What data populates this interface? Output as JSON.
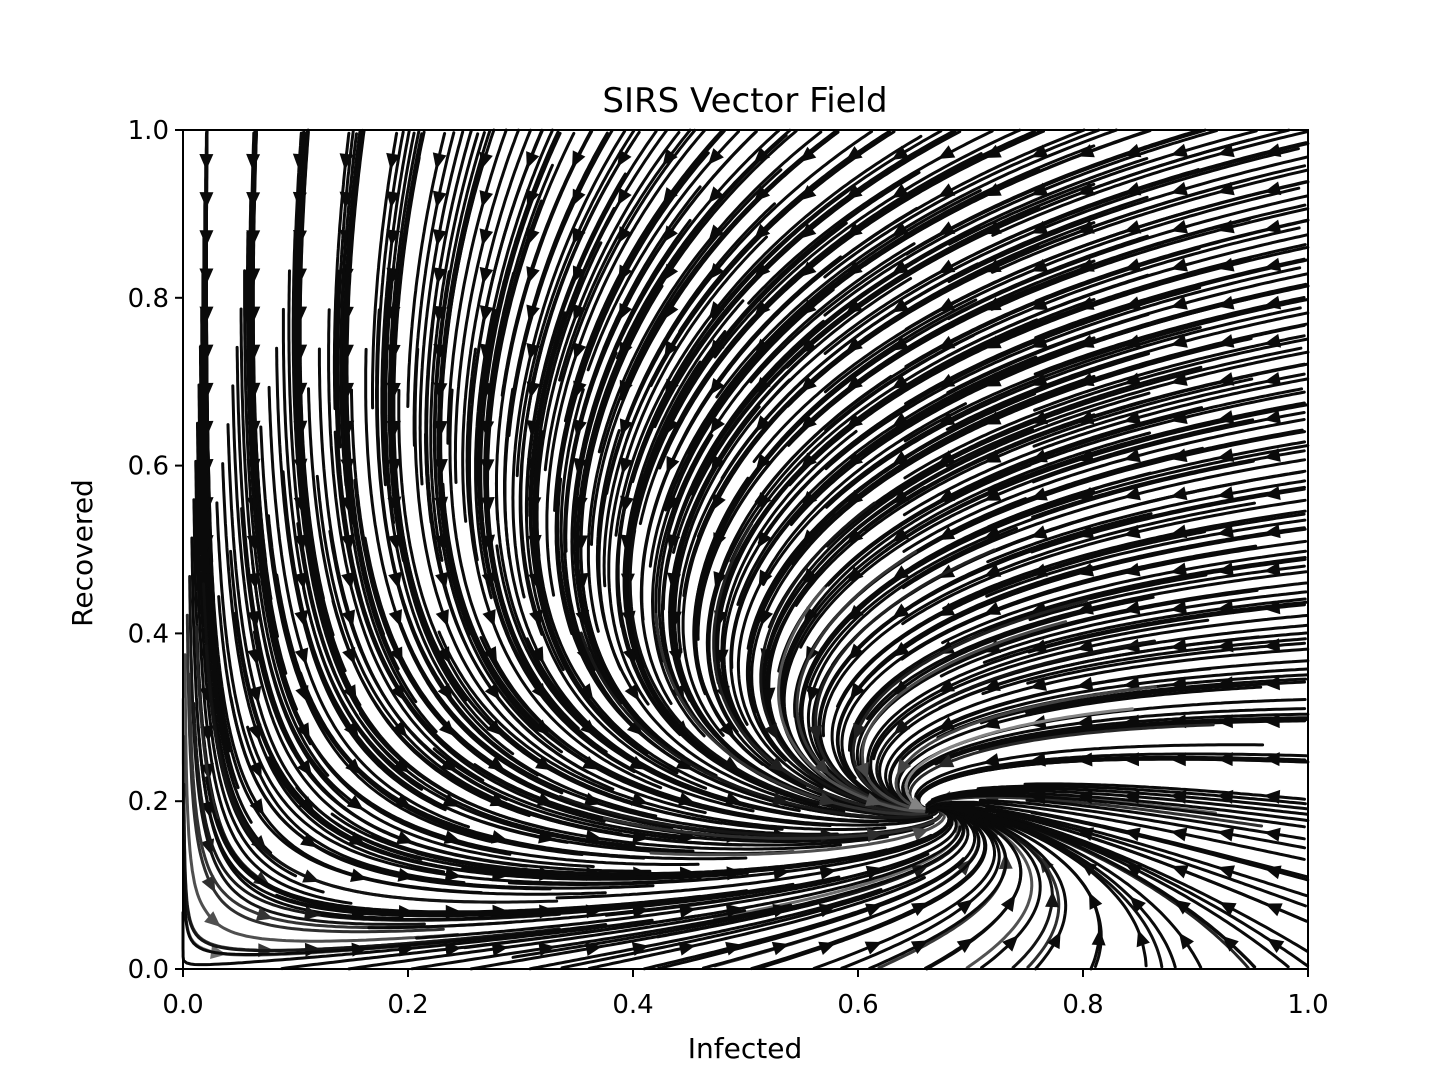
{
  "chart_data": {
    "type": "streamplot",
    "title": "SIRS Vector Field",
    "xlabel": "Infected",
    "ylabel": "Recovered",
    "xlim": [
      0.0,
      1.0
    ],
    "ylim": [
      0.0,
      1.0
    ],
    "xticks": [
      "0.0",
      "0.2",
      "0.4",
      "0.6",
      "0.8",
      "1.0"
    ],
    "yticks": [
      "0.0",
      "0.2",
      "0.4",
      "0.6",
      "0.8",
      "1.0"
    ],
    "grid": false,
    "colormap": "grayscale by speed (light = slow, black = fast)",
    "line_color": "#111111"
  }
}
